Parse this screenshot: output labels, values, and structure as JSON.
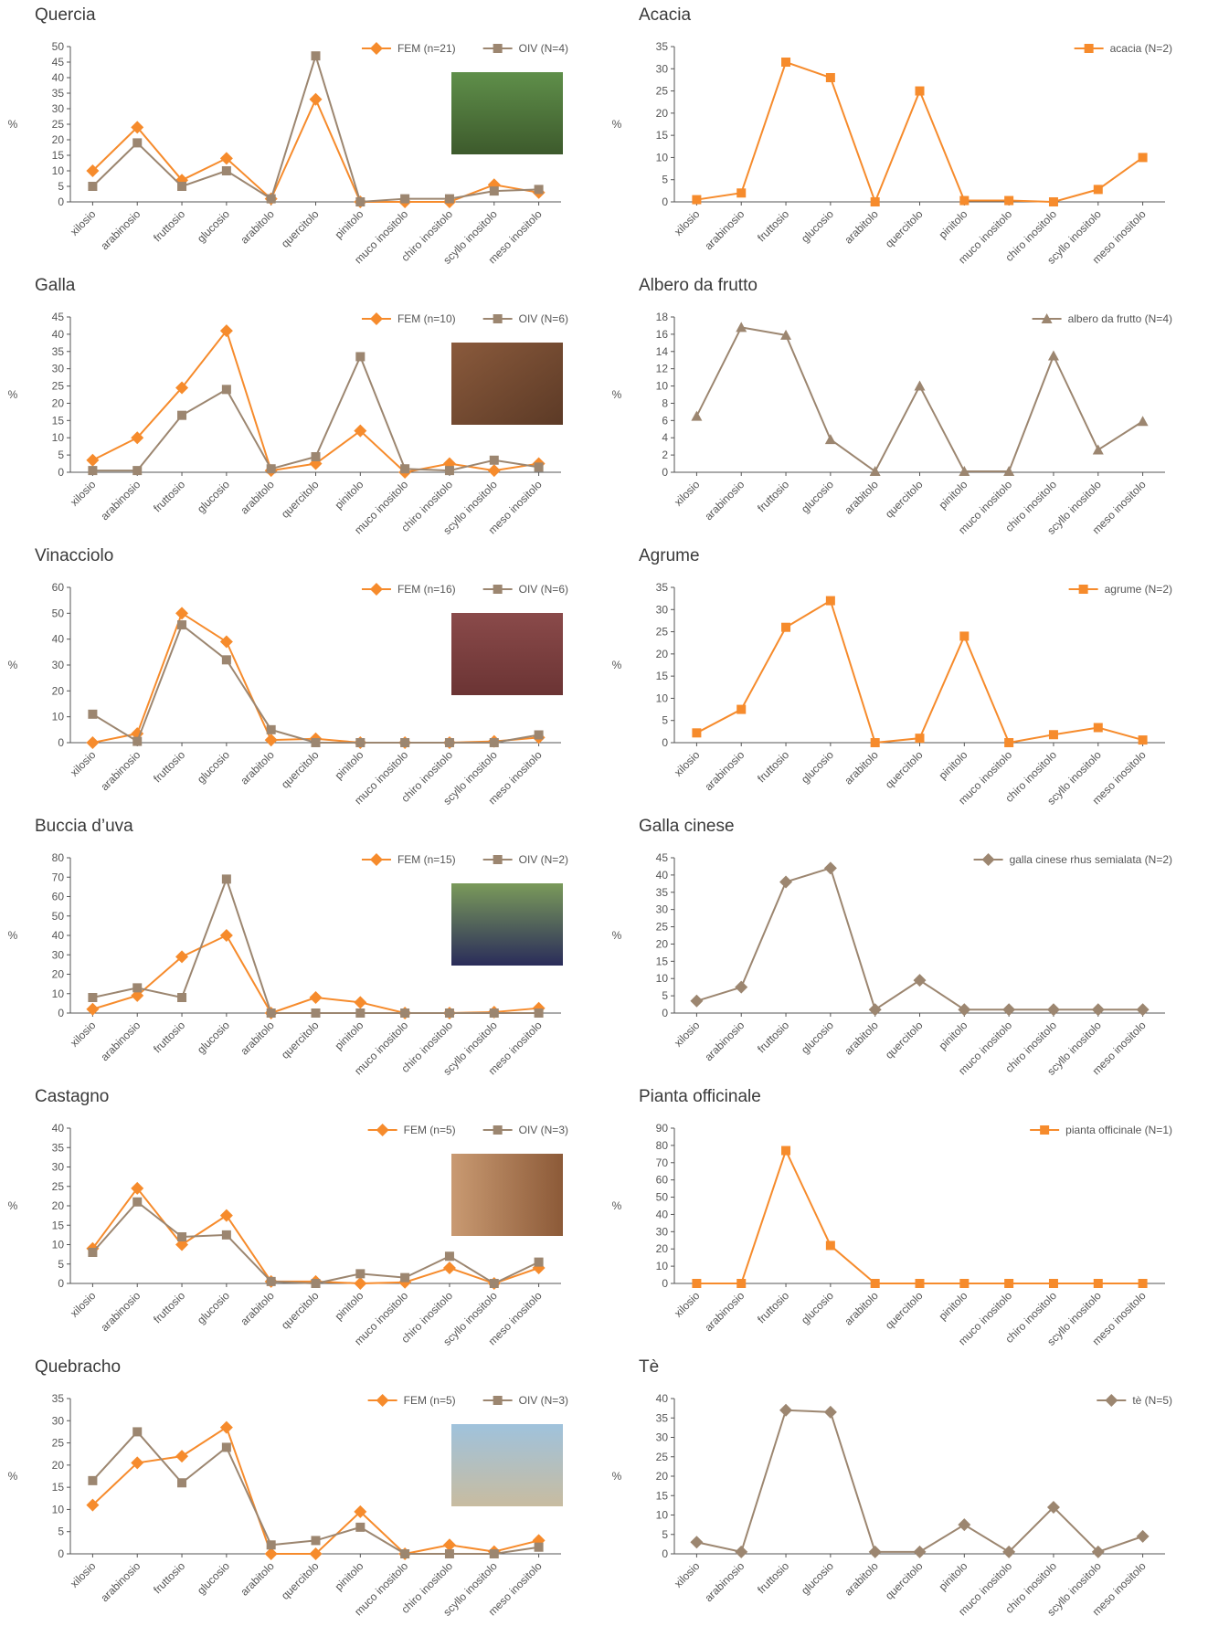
{
  "chart_data": [
    {
      "type": "line",
      "title": "Quercia",
      "ylabel": "%",
      "ylim": [
        0,
        50
      ],
      "yticks": [
        0,
        5,
        10,
        15,
        20,
        25,
        30,
        35,
        40,
        45,
        50
      ],
      "categories": [
        "xilosio",
        "arabinosio",
        "fruttosio",
        "glucosio",
        "arabitolo",
        "quercitolo",
        "pinitolo",
        "muco inositolo",
        "chiro inositolo",
        "scyllo inositolo",
        "meso inositolo"
      ],
      "series": [
        {
          "name": "FEM (n=21)",
          "color": "#f68b2c",
          "marker": "diamond",
          "values": [
            10,
            24,
            7,
            14,
            1,
            33,
            0,
            0,
            0,
            5.5,
            3
          ]
        },
        {
          "name": "OIV (N=4)",
          "color": "#9c8670",
          "marker": "square",
          "values": [
            5,
            19,
            5,
            10,
            1,
            47,
            0,
            1,
            1,
            3.5,
            4
          ]
        }
      ]
    },
    {
      "type": "line",
      "title": "Acacia",
      "ylabel": "%",
      "ylim": [
        0,
        35
      ],
      "yticks": [
        0,
        5,
        10,
        15,
        20,
        25,
        30,
        35
      ],
      "categories": [
        "xilosio",
        "arabinosio",
        "fruttosio",
        "glucosio",
        "arabitolo",
        "quercitolo",
        "pinitolo",
        "muco inositolo",
        "chiro inositolo",
        "scyllo inositolo",
        "meso inositolo"
      ],
      "series": [
        {
          "name": "acacia (N=2)",
          "color": "#f68b2c",
          "marker": "square",
          "values": [
            0.5,
            2,
            31.5,
            28,
            0,
            25,
            0.3,
            0.3,
            0,
            2.8,
            10
          ]
        }
      ]
    },
    {
      "type": "line",
      "title": "Galla",
      "ylabel": "%",
      "ylim": [
        0,
        45
      ],
      "yticks": [
        0,
        5,
        10,
        15,
        20,
        25,
        30,
        35,
        40,
        45
      ],
      "categories": [
        "xilosio",
        "arabinosio",
        "fruttosio",
        "glucosio",
        "arabitolo",
        "quercitolo",
        "pinitolo",
        "muco inositolo",
        "chiro inositolo",
        "scyllo inositolo",
        "meso inositolo"
      ],
      "series": [
        {
          "name": "FEM (n=10)",
          "color": "#f68b2c",
          "marker": "diamond",
          "values": [
            3.5,
            10,
            24.5,
            41,
            0.5,
            2.5,
            12,
            0,
            2.5,
            0.5,
            2.5
          ]
        },
        {
          "name": "OIV (N=6)",
          "color": "#9c8670",
          "marker": "square",
          "values": [
            0.5,
            0.5,
            16.5,
            24,
            1,
            4.5,
            33.5,
            1,
            0.5,
            3.5,
            1.5
          ]
        }
      ]
    },
    {
      "type": "line",
      "title": "Albero da frutto",
      "ylabel": "%",
      "ylim": [
        0,
        18
      ],
      "yticks": [
        0,
        2,
        4,
        6,
        8,
        10,
        12,
        14,
        16,
        18
      ],
      "categories": [
        "xilosio",
        "arabinosio",
        "fruttosio",
        "glucosio",
        "arabitolo",
        "quercitolo",
        "pinitolo",
        "muco inositolo",
        "chiro inositolo",
        "scyllo inositolo",
        "meso inositolo"
      ],
      "series": [
        {
          "name": "albero da frutto (N=4)",
          "color": "#9c8670",
          "marker": "triangle",
          "values": [
            6.5,
            16.8,
            15.9,
            3.8,
            0.1,
            10,
            0.1,
            0.1,
            13.5,
            2.6,
            5.9
          ]
        }
      ]
    },
    {
      "type": "line",
      "title": "Vinacciolo",
      "ylabel": "%",
      "ylim": [
        0,
        60
      ],
      "yticks": [
        0,
        10,
        20,
        30,
        40,
        50,
        60
      ],
      "categories": [
        "xilosio",
        "arabinosio",
        "fruttosio",
        "glucosio",
        "arabitolo",
        "quercitolo",
        "pinitolo",
        "muco inositolo",
        "chiro inositolo",
        "scyllo inositolo",
        "meso inositolo"
      ],
      "series": [
        {
          "name": "FEM (n=16)",
          "color": "#f68b2c",
          "marker": "diamond",
          "values": [
            0,
            3.5,
            50,
            39,
            1,
            1.5,
            0,
            0,
            0,
            0.5,
            2
          ]
        },
        {
          "name": "OIV (N=6)",
          "color": "#9c8670",
          "marker": "square",
          "values": [
            11,
            0.5,
            45.5,
            32,
            5,
            0,
            0,
            0,
            0,
            0,
            3
          ]
        }
      ]
    },
    {
      "type": "line",
      "title": "Agrume",
      "ylabel": "%",
      "ylim": [
        0,
        35
      ],
      "yticks": [
        0,
        5,
        10,
        15,
        20,
        25,
        30,
        35
      ],
      "categories": [
        "xilosio",
        "arabinosio",
        "fruttosio",
        "glucosio",
        "arabitolo",
        "quercitolo",
        "pinitolo",
        "muco inositolo",
        "chiro inositolo",
        "scyllo inositolo",
        "meso inositolo"
      ],
      "series": [
        {
          "name": "agrume (N=2)",
          "color": "#f68b2c",
          "marker": "square",
          "values": [
            2.2,
            7.5,
            26,
            32,
            0,
            1,
            24,
            0,
            1.8,
            3.4,
            0.6
          ]
        }
      ]
    },
    {
      "type": "line",
      "title": "Buccia d’uva",
      "ylabel": "%",
      "ylim": [
        0,
        80
      ],
      "yticks": [
        0,
        10,
        20,
        30,
        40,
        50,
        60,
        70,
        80
      ],
      "categories": [
        "xilosio",
        "arabinosio",
        "fruttosio",
        "glucosio",
        "arabitolo",
        "quercitolo",
        "pinitolo",
        "muco inositolo",
        "chiro inositolo",
        "scyllo inositolo",
        "meso inositolo"
      ],
      "series": [
        {
          "name": "FEM (n=15)",
          "color": "#f68b2c",
          "marker": "diamond",
          "values": [
            2,
            9,
            29,
            40,
            0,
            8,
            5.5,
            0,
            0,
            0.5,
            2.5
          ]
        },
        {
          "name": "OIV (N=2)",
          "color": "#9c8670",
          "marker": "square",
          "values": [
            8,
            13,
            8,
            69,
            0,
            0,
            0,
            0,
            0,
            0,
            0
          ]
        }
      ]
    },
    {
      "type": "line",
      "title": "Galla cinese",
      "ylabel": "%",
      "ylim": [
        0,
        45
      ],
      "yticks": [
        0,
        5,
        10,
        15,
        20,
        25,
        30,
        35,
        40,
        45
      ],
      "categories": [
        "xilosio",
        "arabinosio",
        "fruttosio",
        "glucosio",
        "arabitolo",
        "quercitolo",
        "pinitolo",
        "muco inositolo",
        "chiro inositolo",
        "scyllo inositolo",
        "meso inositolo"
      ],
      "series": [
        {
          "name": "galla cinese rhus semialata (N=2)",
          "color": "#9c8670",
          "marker": "diamond",
          "values": [
            3.5,
            7.5,
            38,
            42,
            1,
            9.5,
            1,
            1,
            1,
            1,
            1
          ]
        }
      ]
    },
    {
      "type": "line",
      "title": "Castagno",
      "ylabel": "%",
      "ylim": [
        0,
        40
      ],
      "yticks": [
        0,
        5,
        10,
        15,
        20,
        25,
        30,
        35,
        40
      ],
      "categories": [
        "xilosio",
        "arabinosio",
        "fruttosio",
        "glucosio",
        "arabitolo",
        "quercitolo",
        "pinitolo",
        "muco inositolo",
        "chiro inositolo",
        "scyllo inositolo",
        "meso inositolo"
      ],
      "series": [
        {
          "name": "FEM (n=5)",
          "color": "#f68b2c",
          "marker": "diamond",
          "values": [
            9,
            24.5,
            10,
            17.5,
            0.5,
            0.5,
            0,
            0.3,
            4,
            0,
            4
          ]
        },
        {
          "name": "OIV (N=3)",
          "color": "#9c8670",
          "marker": "square",
          "values": [
            8,
            21,
            12,
            12.5,
            0.5,
            0,
            2.5,
            1.5,
            7,
            0,
            5.5
          ]
        }
      ]
    },
    {
      "type": "line",
      "title": "Pianta officinale",
      "ylabel": "%",
      "ylim": [
        0,
        90
      ],
      "yticks": [
        0,
        10,
        20,
        30,
        40,
        50,
        60,
        70,
        80,
        90
      ],
      "categories": [
        "xilosio",
        "arabinosio",
        "fruttosio",
        "glucosio",
        "arabitolo",
        "quercitolo",
        "pinitolo",
        "muco inositolo",
        "chiro inositolo",
        "scyllo inositolo",
        "meso inositolo"
      ],
      "series": [
        {
          "name": "pianta officinale (N=1)",
          "color": "#f68b2c",
          "marker": "square",
          "values": [
            0,
            0,
            77,
            22,
            0,
            0,
            0,
            0,
            0,
            0,
            0
          ]
        }
      ]
    },
    {
      "type": "line",
      "title": "Quebracho",
      "ylabel": "%",
      "ylim": [
        0,
        35
      ],
      "yticks": [
        0,
        5,
        10,
        15,
        20,
        25,
        30,
        35
      ],
      "categories": [
        "xilosio",
        "arabinosio",
        "fruttosio",
        "glucosio",
        "arabitolo",
        "quercitolo",
        "pinitolo",
        "muco inositolo",
        "chiro inositolo",
        "scyllo inositolo",
        "meso inositolo"
      ],
      "series": [
        {
          "name": "FEM (n=5)",
          "color": "#f68b2c",
          "marker": "diamond",
          "values": [
            11,
            20.5,
            22,
            28.5,
            0,
            0,
            9.5,
            0,
            2,
            0.5,
            3
          ]
        },
        {
          "name": "OIV (N=3)",
          "color": "#9c8670",
          "marker": "square",
          "values": [
            16.5,
            27.5,
            16,
            24,
            2,
            3,
            6,
            0,
            0,
            0,
            1.5
          ]
        }
      ]
    },
    {
      "type": "line",
      "title": "Tè",
      "ylabel": "%",
      "ylim": [
        0,
        40
      ],
      "yticks": [
        0,
        5,
        10,
        15,
        20,
        25,
        30,
        35,
        40
      ],
      "categories": [
        "xilosio",
        "arabinosio",
        "fruttosio",
        "glucosio",
        "arabitolo",
        "quercitolo",
        "pinitolo",
        "muco inositolo",
        "chiro inositolo",
        "scyllo inositolo",
        "meso inositolo"
      ],
      "series": [
        {
          "name": "tè (N=5)",
          "color": "#9c8670",
          "marker": "diamond",
          "values": [
            3,
            0.5,
            37,
            36.5,
            0.5,
            0.5,
            7.5,
            0.5,
            12,
            0.5,
            4.5
          ]
        }
      ]
    }
  ]
}
